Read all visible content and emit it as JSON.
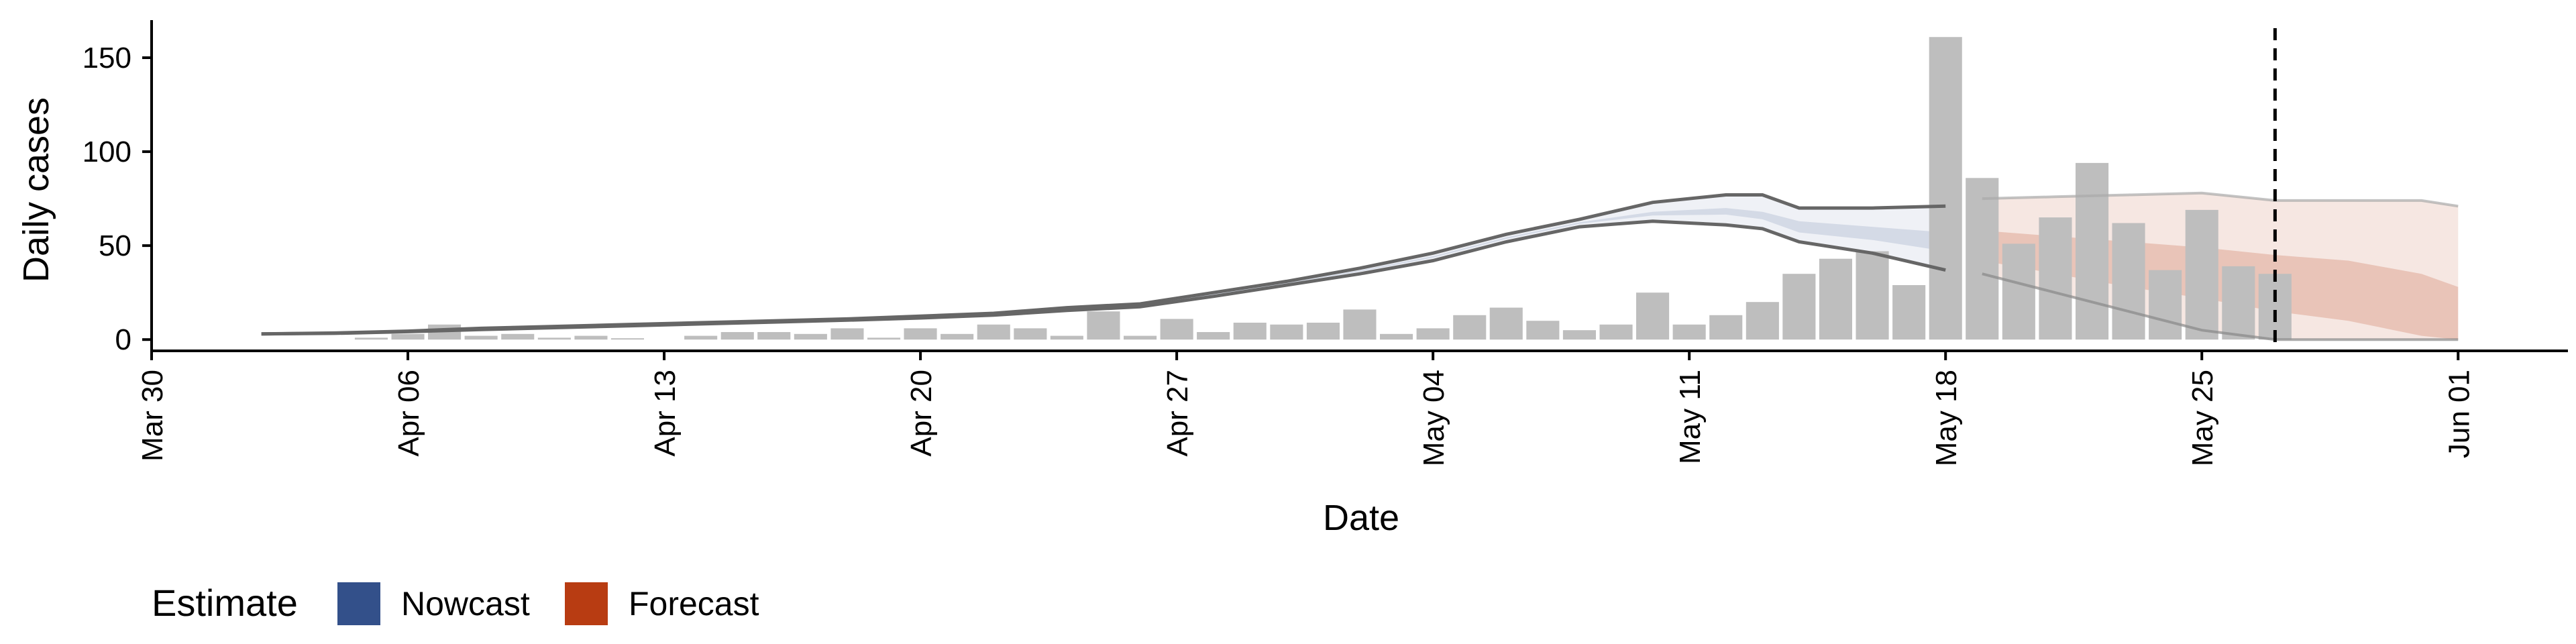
{
  "chart_data": {
    "type": "bar",
    "title": "",
    "xlabel": "Date",
    "ylabel": "Daily cases",
    "x_range": [
      "2020-03-30",
      "2020-06-04"
    ],
    "ylim": [
      -6,
      170
    ],
    "y_ticks": [
      0,
      50,
      100,
      150
    ],
    "x_ticks": [
      {
        "date": "2020-03-30",
        "label": "Mar 30"
      },
      {
        "date": "2020-04-06",
        "label": "Apr 06"
      },
      {
        "date": "2020-04-13",
        "label": "Apr 13"
      },
      {
        "date": "2020-04-20",
        "label": "Apr 20"
      },
      {
        "date": "2020-04-27",
        "label": "Apr 27"
      },
      {
        "date": "2020-05-04",
        "label": "May 04"
      },
      {
        "date": "2020-05-11",
        "label": "May 11"
      },
      {
        "date": "2020-05-18",
        "label": "May 18"
      },
      {
        "date": "2020-05-25",
        "label": "May 25"
      },
      {
        "date": "2020-06-01",
        "label": "Jun 01"
      }
    ],
    "grid": false,
    "reference_line": {
      "date": "2020-05-27",
      "style": "dashed"
    },
    "bars": {
      "dates": [
        "2020-04-05",
        "2020-04-06",
        "2020-04-07",
        "2020-04-08",
        "2020-04-09",
        "2020-04-10",
        "2020-04-11",
        "2020-04-12",
        "2020-04-14",
        "2020-04-15",
        "2020-04-16",
        "2020-04-17",
        "2020-04-18",
        "2020-04-19",
        "2020-04-20",
        "2020-04-21",
        "2020-04-22",
        "2020-04-23",
        "2020-04-24",
        "2020-04-25",
        "2020-04-26",
        "2020-04-27",
        "2020-04-28",
        "2020-04-29",
        "2020-04-30",
        "2020-05-01",
        "2020-05-02",
        "2020-05-03",
        "2020-05-04",
        "2020-05-05",
        "2020-05-06",
        "2020-05-07",
        "2020-05-08",
        "2020-05-09",
        "2020-05-10",
        "2020-05-11",
        "2020-05-12",
        "2020-05-13",
        "2020-05-14",
        "2020-05-15",
        "2020-05-16",
        "2020-05-17",
        "2020-05-18",
        "2020-05-19",
        "2020-05-20",
        "2020-05-21",
        "2020-05-22",
        "2020-05-23",
        "2020-05-24",
        "2020-05-25",
        "2020-05-26",
        "2020-05-27"
      ],
      "values": [
        1,
        3,
        8,
        2,
        3,
        1,
        2,
        0,
        2,
        4,
        4,
        3,
        6,
        1,
        6,
        3,
        8,
        6,
        2,
        15,
        2,
        11,
        4,
        9,
        8,
        9,
        16,
        3,
        6,
        13,
        17,
        10,
        5,
        8,
        25,
        8,
        13,
        20,
        35,
        43,
        47,
        29,
        161,
        86,
        51,
        65,
        94,
        62,
        37,
        69,
        39,
        35
      ],
      "color": "#bebebe"
    },
    "series": [
      {
        "name": "Nowcast",
        "color": "#33508a",
        "x": [
          "2020-04-02",
          "2020-04-04",
          "2020-04-06",
          "2020-04-08",
          "2020-04-10",
          "2020-04-12",
          "2020-04-14",
          "2020-04-16",
          "2020-04-18",
          "2020-04-20",
          "2020-04-22",
          "2020-04-24",
          "2020-04-26",
          "2020-04-28",
          "2020-04-30",
          "2020-05-02",
          "2020-05-04",
          "2020-05-06",
          "2020-05-08",
          "2020-05-10",
          "2020-05-12",
          "2020-05-13",
          "2020-05-14",
          "2020-05-16",
          "2020-05-18"
        ],
        "outer_upper": [
          3,
          3.5,
          4.5,
          6,
          7,
          8,
          9,
          10,
          11,
          12.5,
          14,
          17,
          19,
          25,
          31,
          38,
          46,
          56,
          64,
          73,
          77,
          77,
          70,
          70,
          71
        ],
        "outer_lower": [
          3,
          3.3,
          4.2,
          5.3,
          6.3,
          7.3,
          8.3,
          9.3,
          10.3,
          11.5,
          13,
          15.5,
          17.5,
          23,
          29,
          35,
          42,
          52,
          60,
          63,
          61,
          59,
          52,
          46,
          37
        ],
        "inner_upper": [
          3,
          3.4,
          4.4,
          5.7,
          6.7,
          7.7,
          8.7,
          9.7,
          10.7,
          12.1,
          13.6,
          16.4,
          18.4,
          24.2,
          30.2,
          36.8,
          44.4,
          54.4,
          62.4,
          68,
          70,
          68,
          63,
          60,
          57
        ],
        "inner_lower": [
          3,
          3.4,
          4.3,
          5.5,
          6.5,
          7.5,
          8.5,
          9.5,
          10.5,
          11.8,
          13.3,
          16,
          18,
          23.7,
          29.8,
          36.2,
          43.6,
          53.6,
          61.6,
          66,
          66.5,
          64,
          57,
          53,
          47
        ]
      },
      {
        "name": "Forecast",
        "color": "#b83c12",
        "x": [
          "2020-05-19",
          "2020-05-21",
          "2020-05-23",
          "2020-05-25",
          "2020-05-27",
          "2020-05-29",
          "2020-05-31",
          "2020-06-01"
        ],
        "outer_upper": [
          75,
          76,
          77,
          78,
          74,
          74,
          74,
          71
        ],
        "outer_lower": [
          35,
          25,
          15,
          5,
          0,
          0,
          0,
          0
        ],
        "inner_upper": [
          58,
          55,
          52,
          49,
          45,
          42,
          35,
          28
        ],
        "inner_lower": [
          42,
          35,
          28,
          22,
          15,
          10,
          2,
          0
        ]
      }
    ],
    "legend": {
      "title": "Estimate",
      "position": "bottom-left",
      "entries": [
        {
          "label": "Nowcast",
          "color": "#33508a"
        },
        {
          "label": "Forecast",
          "color": "#b83c12"
        }
      ]
    }
  }
}
